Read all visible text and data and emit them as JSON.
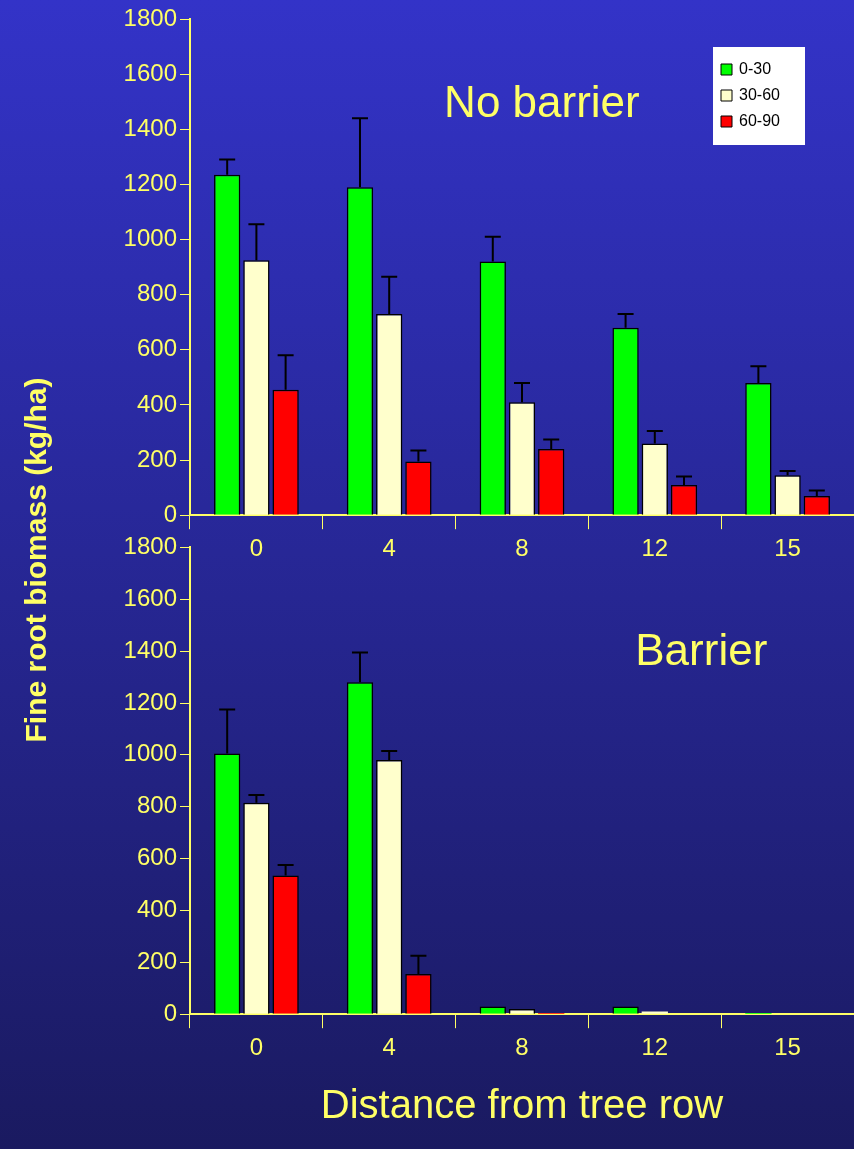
{
  "chart_data": [
    {
      "type": "bar",
      "title": "No barrier",
      "ylabel": "Fine root biomass (kg/ha)",
      "categories": [
        "0",
        "4",
        "8",
        "12",
        "15"
      ],
      "series": [
        {
          "name": "0-30",
          "color": "#00ff00",
          "values": [
            1235,
            1190,
            920,
            680,
            480
          ],
          "errors": [
            [
              1235,
              1290
            ],
            [
              1190,
              1440
            ],
            [
              920,
              1010
            ],
            [
              680,
              730
            ],
            [
              480,
              540
            ]
          ]
        },
        {
          "name": "30-60",
          "color": "#ffffcc",
          "values": [
            925,
            730,
            410,
            260,
            145
          ],
          "errors": [
            [
              925,
              1055
            ],
            [
              730,
              865
            ],
            [
              410,
              480
            ],
            [
              260,
              305
            ],
            [
              145,
              160
            ]
          ]
        },
        {
          "name": "60-90",
          "color": "#ff0000",
          "values": [
            455,
            195,
            240,
            110,
            70
          ],
          "errors": [
            [
              455,
              580
            ],
            [
              195,
              235
            ],
            [
              240,
              275
            ],
            [
              110,
              140
            ],
            [
              70,
              90
            ]
          ]
        }
      ],
      "ylim": [
        0,
        1800
      ],
      "yticks": [
        0,
        200,
        400,
        600,
        800,
        1000,
        1200,
        1400,
        1600,
        1800
      ],
      "grid": false,
      "legend": "top right"
    },
    {
      "type": "bar",
      "title": "Barrier",
      "xlabel": "Distance from tree row",
      "categories": [
        "0",
        "4",
        "8",
        "12",
        "15"
      ],
      "series": [
        {
          "color": "#00ff00",
          "values": [
            1005,
            1280,
            30,
            30,
            5
          ],
          "errors": [
            [
              1005,
              1175
            ],
            [
              1280,
              1395
            ],
            null,
            null,
            null
          ]
        },
        {
          "color": "#ffffcc",
          "values": [
            815,
            980,
            20,
            10,
            0
          ],
          "errors": [
            [
              815,
              845
            ],
            [
              980,
              1015
            ],
            null,
            null,
            null
          ]
        },
        {
          "color": "#ff0000",
          "values": [
            535,
            155,
            5,
            0,
            0
          ],
          "errors": [
            [
              535,
              575
            ],
            [
              155,
              225
            ],
            null,
            null,
            null
          ]
        }
      ],
      "ylim": [
        0,
        1800
      ],
      "yticks": [
        0,
        200,
        400,
        600,
        800,
        1000,
        1200,
        1400,
        1600,
        1800
      ],
      "grid": false,
      "legend": false
    }
  ]
}
